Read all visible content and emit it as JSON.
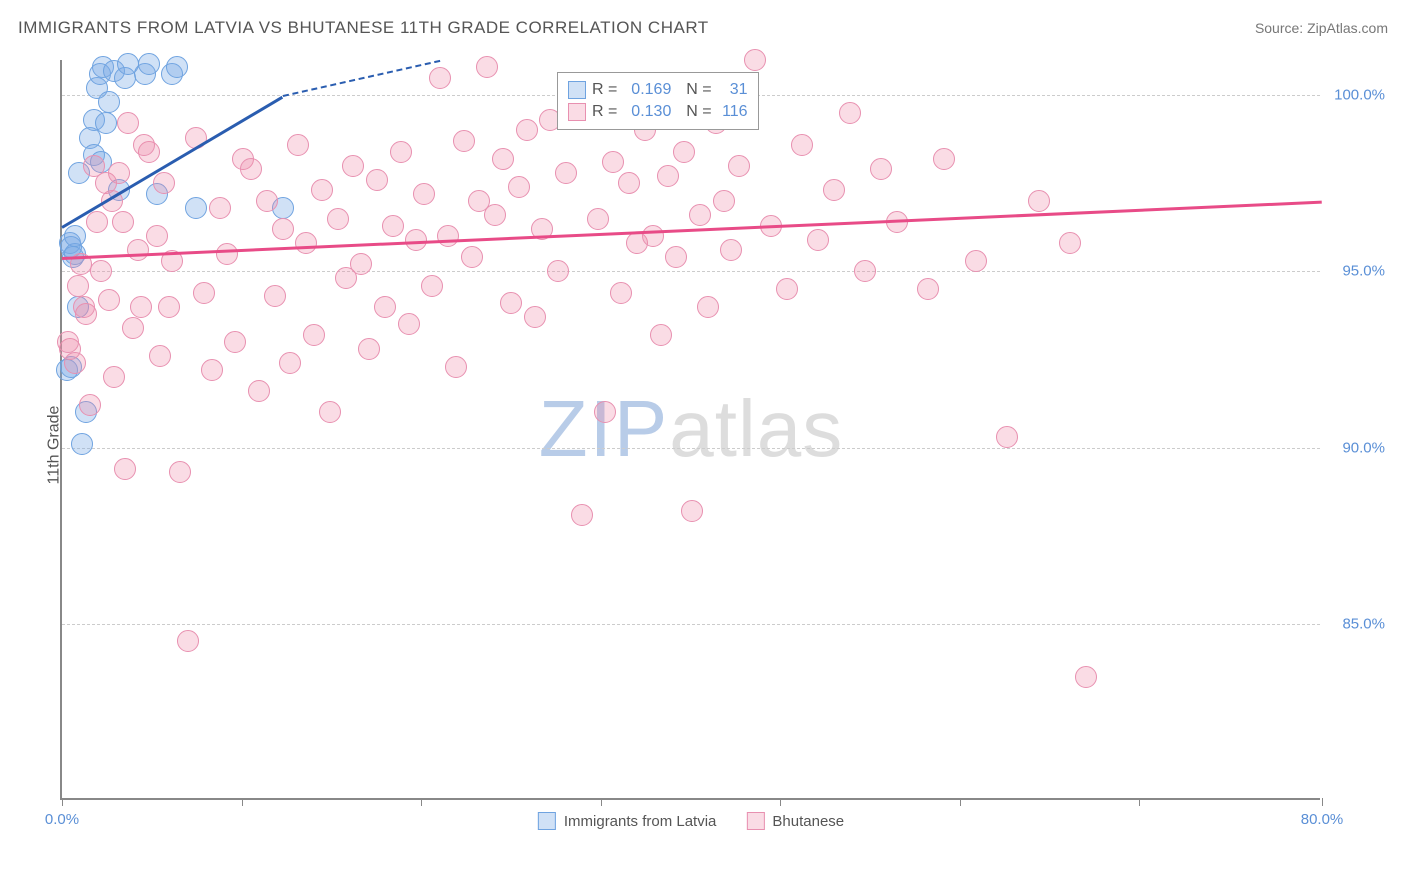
{
  "header": {
    "title": "IMMIGRANTS FROM LATVIA VS BHUTANESE 11TH GRADE CORRELATION CHART",
    "source": "Source: ZipAtlas.com"
  },
  "chart": {
    "type": "scatter",
    "ylabel": "11th Grade",
    "xlim": [
      0,
      80
    ],
    "ylim": [
      80,
      101
    ],
    "xtick_positions": [
      0,
      80
    ],
    "xtick_labels": [
      "0.0%",
      "80.0%"
    ],
    "xtick_marks": [
      0,
      11.4,
      22.8,
      34.2,
      45.6,
      57,
      68.4,
      80
    ],
    "ytick_positions": [
      85,
      90,
      95,
      100
    ],
    "ytick_labels": [
      "85.0%",
      "90.0%",
      "95.0%",
      "100.0%"
    ],
    "grid_color": "#cccccc",
    "background_color": "#ffffff",
    "point_radius": 11,
    "series": [
      {
        "name": "Immigrants from Latvia",
        "fill": "rgba(120,170,230,0.35)",
        "stroke": "#6fa3e0",
        "line_color": "#2a5db0",
        "r": "0.169",
        "n": "31",
        "trend": {
          "x1": 0,
          "y1": 96.3,
          "x2": 14,
          "y2": 100,
          "dash_x2": 24,
          "dash_y2": 101
        },
        "points": [
          [
            0.3,
            92.2
          ],
          [
            0.5,
            95.8
          ],
          [
            0.6,
            95.7
          ],
          [
            0.7,
            95.4
          ],
          [
            0.8,
            95.5
          ],
          [
            0.8,
            96.0
          ],
          [
            1.0,
            94.0
          ],
          [
            1.1,
            97.8
          ],
          [
            1.3,
            90.1
          ],
          [
            1.5,
            91.0
          ],
          [
            1.8,
            98.8
          ],
          [
            2.0,
            98.3
          ],
          [
            2.0,
            99.3
          ],
          [
            2.2,
            100.2
          ],
          [
            2.4,
            100.6
          ],
          [
            2.5,
            98.1
          ],
          [
            2.6,
            100.8
          ],
          [
            2.8,
            99.2
          ],
          [
            3.0,
            99.8
          ],
          [
            3.3,
            100.7
          ],
          [
            3.6,
            97.3
          ],
          [
            4.0,
            100.5
          ],
          [
            4.2,
            100.9
          ],
          [
            5.3,
            100.6
          ],
          [
            5.5,
            100.9
          ],
          [
            6.0,
            97.2
          ],
          [
            7.0,
            100.6
          ],
          [
            7.3,
            100.8
          ],
          [
            8.5,
            96.8
          ],
          [
            14.0,
            96.8
          ],
          [
            0.6,
            92.3
          ]
        ]
      },
      {
        "name": "Bhutanese",
        "fill": "rgba(240,140,170,0.30)",
        "stroke": "#e890b0",
        "line_color": "#e84b87",
        "r": "0.130",
        "n": "116",
        "trend": {
          "x1": 0,
          "y1": 95.4,
          "x2": 80,
          "y2": 97.0
        },
        "points": [
          [
            0.5,
            92.8
          ],
          [
            0.8,
            92.4
          ],
          [
            1.0,
            94.6
          ],
          [
            1.2,
            95.2
          ],
          [
            1.5,
            93.8
          ],
          [
            1.8,
            91.2
          ],
          [
            2.0,
            98.0
          ],
          [
            2.2,
            96.4
          ],
          [
            2.5,
            95.0
          ],
          [
            2.8,
            97.5
          ],
          [
            3.0,
            94.2
          ],
          [
            3.3,
            92.0
          ],
          [
            3.6,
            97.8
          ],
          [
            4.0,
            89.4
          ],
          [
            4.2,
            99.2
          ],
          [
            4.5,
            93.4
          ],
          [
            4.8,
            95.6
          ],
          [
            5.0,
            94.0
          ],
          [
            5.5,
            98.4
          ],
          [
            6.0,
            96.0
          ],
          [
            6.2,
            92.6
          ],
          [
            6.5,
            97.5
          ],
          [
            7.0,
            95.3
          ],
          [
            7.5,
            89.3
          ],
          [
            8.0,
            84.5
          ],
          [
            8.5,
            98.8
          ],
          [
            9.0,
            94.4
          ],
          [
            9.5,
            92.2
          ],
          [
            10.0,
            96.8
          ],
          [
            10.5,
            95.5
          ],
          [
            11.0,
            93.0
          ],
          [
            11.5,
            98.2
          ],
          [
            12.0,
            97.9
          ],
          [
            12.5,
            91.6
          ],
          [
            13.0,
            97.0
          ],
          [
            13.5,
            94.3
          ],
          [
            14.0,
            96.2
          ],
          [
            14.5,
            92.4
          ],
          [
            15.0,
            98.6
          ],
          [
            15.5,
            95.8
          ],
          [
            16.0,
            93.2
          ],
          [
            16.5,
            97.3
          ],
          [
            17.0,
            91.0
          ],
          [
            17.5,
            96.5
          ],
          [
            18.0,
            94.8
          ],
          [
            18.5,
            98.0
          ],
          [
            19.0,
            95.2
          ],
          [
            19.5,
            92.8
          ],
          [
            20.0,
            97.6
          ],
          [
            20.5,
            94.0
          ],
          [
            21.0,
            96.3
          ],
          [
            21.5,
            98.4
          ],
          [
            22.0,
            93.5
          ],
          [
            22.5,
            95.9
          ],
          [
            23.0,
            97.2
          ],
          [
            23.5,
            94.6
          ],
          [
            24.0,
            100.5
          ],
          [
            24.5,
            96.0
          ],
          [
            25.0,
            92.3
          ],
          [
            25.5,
            98.7
          ],
          [
            26.0,
            95.4
          ],
          [
            26.5,
            97.0
          ],
          [
            27.0,
            100.8
          ],
          [
            27.5,
            96.6
          ],
          [
            28.0,
            98.2
          ],
          [
            28.5,
            94.1
          ],
          [
            29.0,
            97.4
          ],
          [
            29.5,
            99.0
          ],
          [
            30.0,
            93.7
          ],
          [
            30.5,
            96.2
          ],
          [
            31.0,
            99.3
          ],
          [
            31.5,
            95.0
          ],
          [
            32.0,
            97.8
          ],
          [
            33.0,
            88.1
          ],
          [
            34.0,
            96.5
          ],
          [
            34.5,
            91.0
          ],
          [
            35.0,
            98.1
          ],
          [
            35.5,
            94.4
          ],
          [
            36.0,
            97.5
          ],
          [
            36.5,
            95.8
          ],
          [
            37.0,
            99.0
          ],
          [
            37.5,
            96.0
          ],
          [
            38.0,
            93.2
          ],
          [
            38.5,
            97.7
          ],
          [
            39.0,
            95.4
          ],
          [
            39.5,
            98.4
          ],
          [
            40.0,
            88.2
          ],
          [
            40.5,
            96.6
          ],
          [
            41.0,
            94.0
          ],
          [
            41.5,
            99.2
          ],
          [
            42.0,
            97.0
          ],
          [
            42.5,
            95.6
          ],
          [
            43.0,
            98.0
          ],
          [
            44.0,
            101.0
          ],
          [
            45.0,
            96.3
          ],
          [
            46.0,
            94.5
          ],
          [
            47.0,
            98.6
          ],
          [
            48.0,
            95.9
          ],
          [
            49.0,
            97.3
          ],
          [
            50.0,
            99.5
          ],
          [
            51.0,
            95.0
          ],
          [
            52.0,
            97.9
          ],
          [
            53.0,
            96.4
          ],
          [
            55.0,
            94.5
          ],
          [
            56.0,
            98.2
          ],
          [
            58.0,
            95.3
          ],
          [
            60.0,
            90.3
          ],
          [
            62.0,
            97.0
          ],
          [
            64.0,
            95.8
          ],
          [
            65.0,
            83.5
          ],
          [
            0.4,
            93.0
          ],
          [
            1.4,
            94.0
          ],
          [
            3.2,
            97.0
          ],
          [
            3.9,
            96.4
          ],
          [
            5.2,
            98.6
          ],
          [
            6.8,
            94.0
          ]
        ]
      }
    ],
    "watermark": {
      "part1": "ZIP",
      "part2": "atlas"
    }
  }
}
